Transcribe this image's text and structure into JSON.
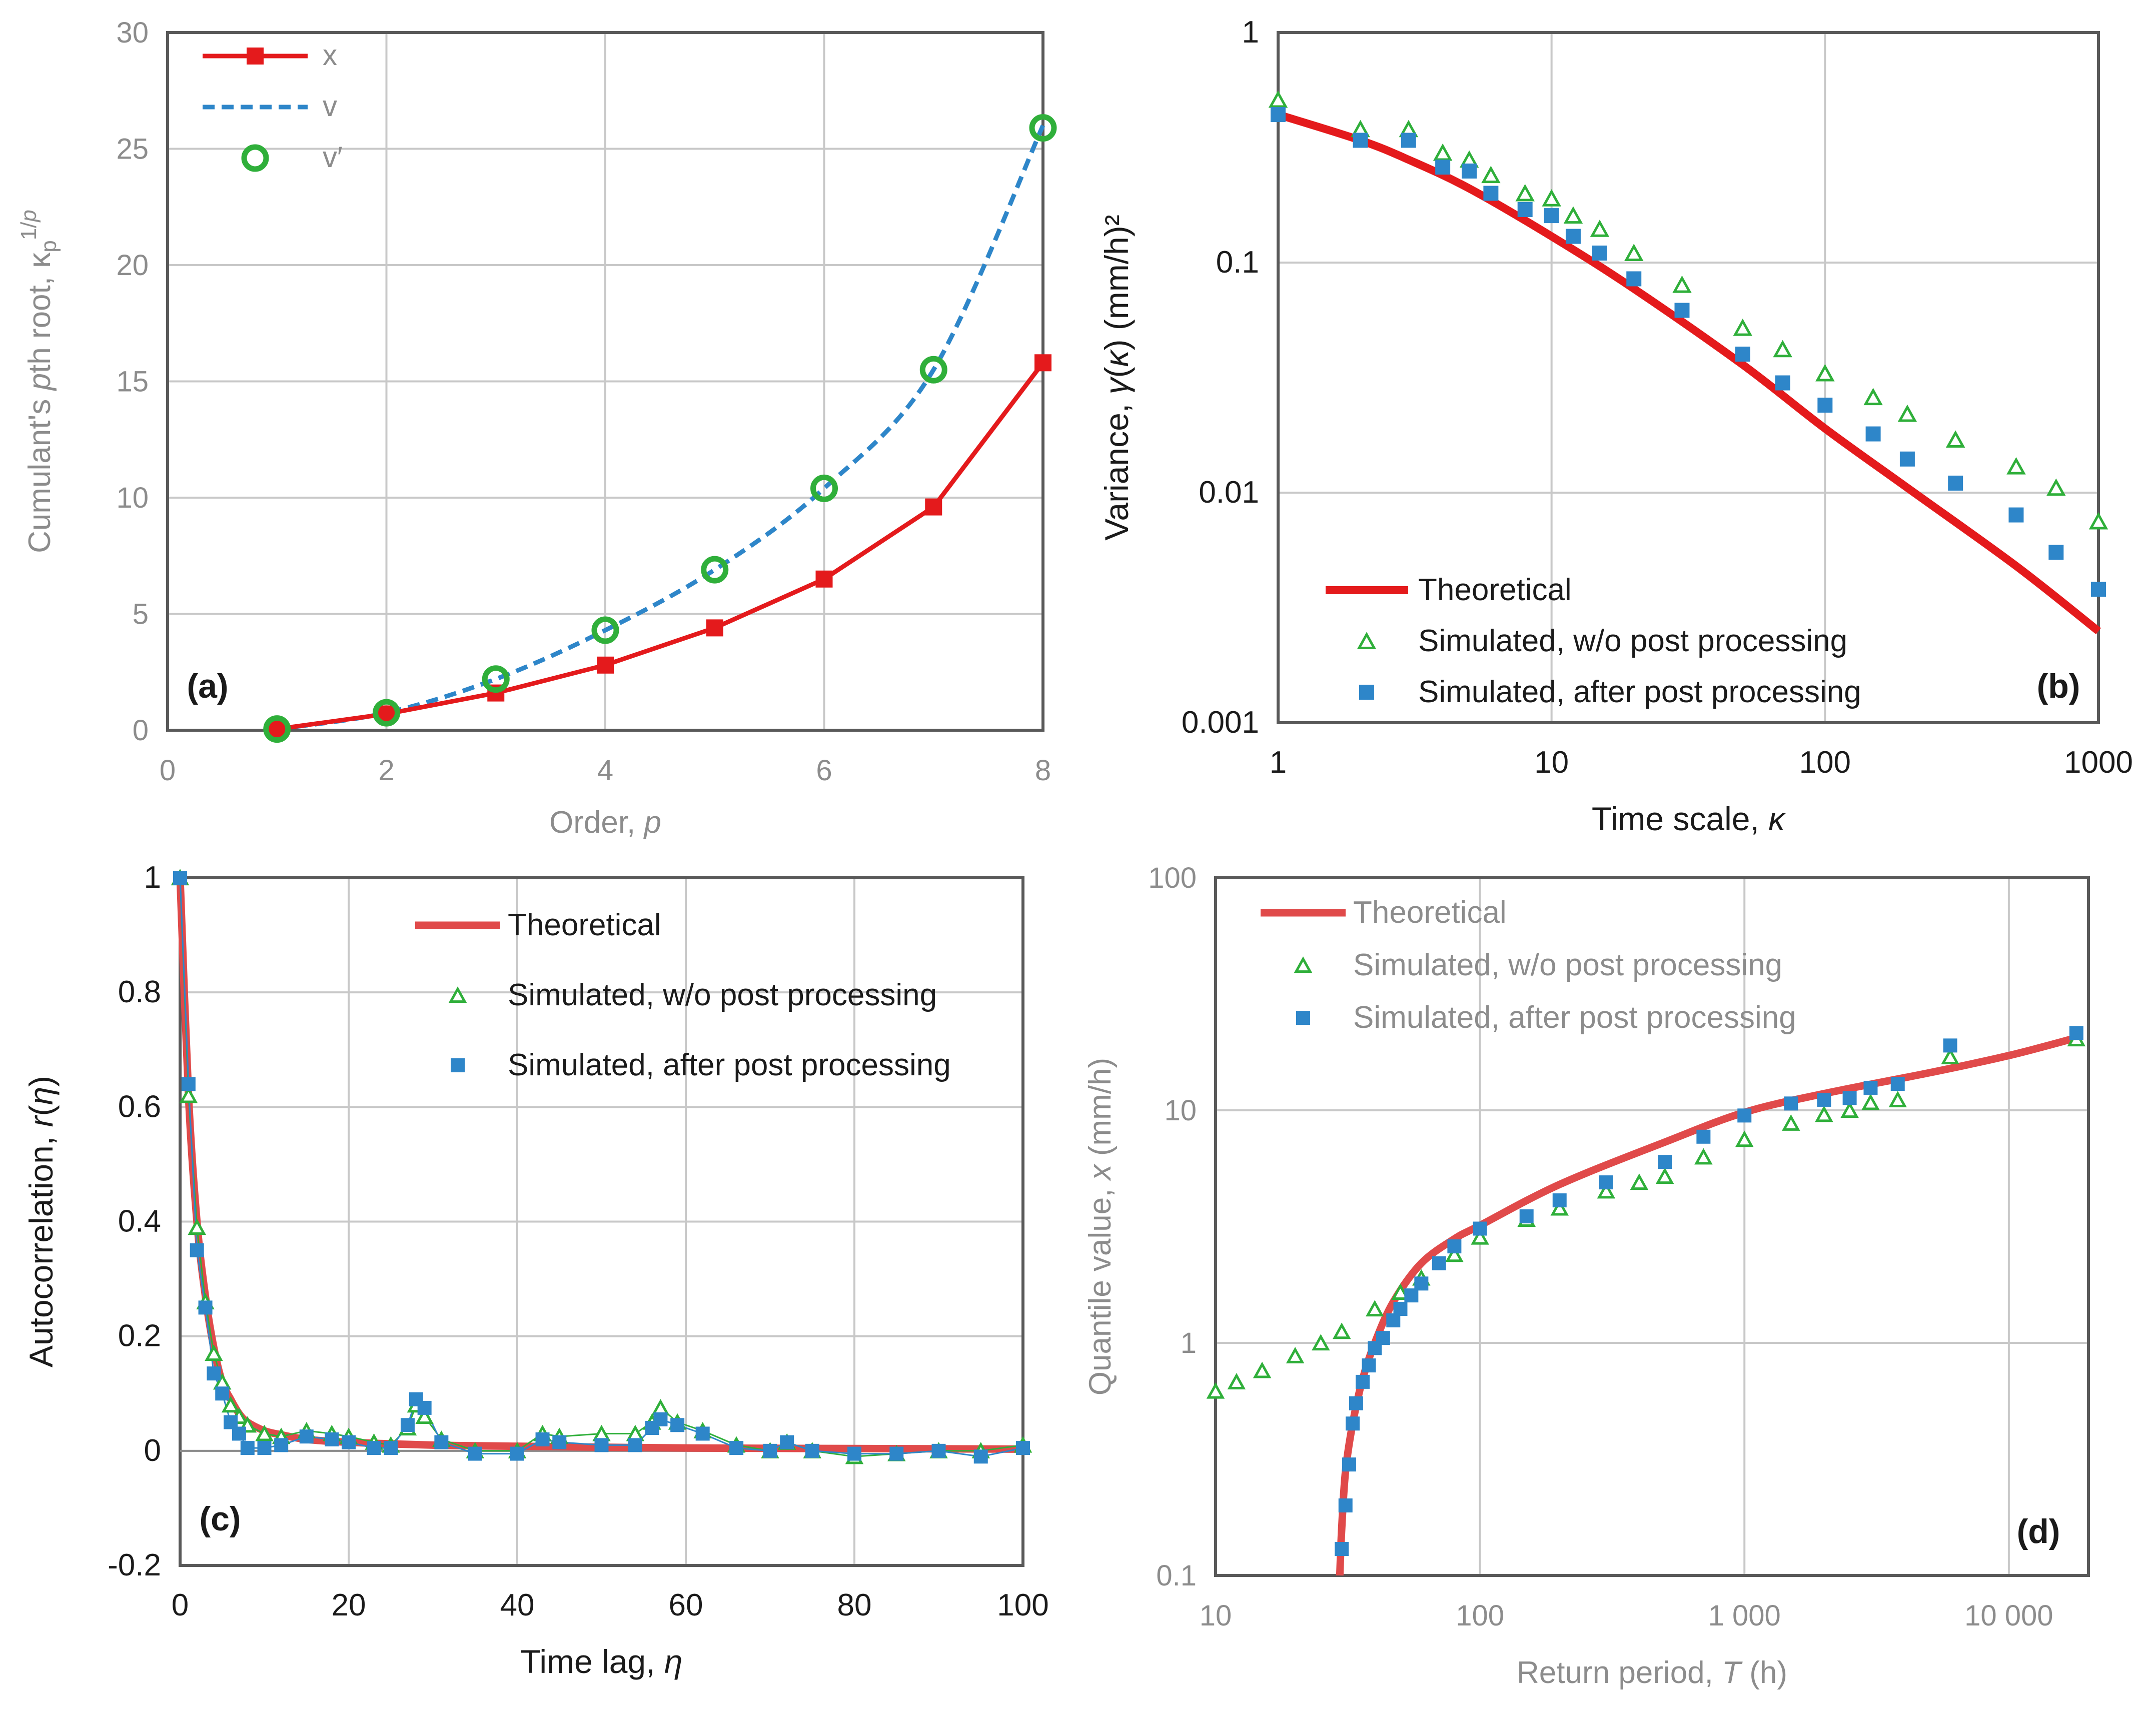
{
  "colors": {
    "red": "#E41A1C",
    "red_theory": "#E04A4A",
    "blue": "#2E86C9",
    "green": "#2FAF3A",
    "grid": "#C8C8C8",
    "frame": "#595959",
    "grey_text": "#8C8C8C",
    "dark_text": "#1A1A1A"
  },
  "chart_data": [
    {
      "id": "a",
      "type": "line",
      "panel_label": "(a)",
      "xlabel": "Order, p",
      "ylabel": "Cumulant's pth root, κp^(1/p)",
      "xlim": [
        0,
        8
      ],
      "ylim": [
        0,
        30
      ],
      "xticks": [
        0,
        2,
        4,
        6,
        8
      ],
      "yticks": [
        0,
        5,
        10,
        15,
        20,
        25,
        30
      ],
      "legend_position": "top-left",
      "series": [
        {
          "name": "x",
          "style": "line-square",
          "color": "red",
          "x": [
            1,
            2,
            3,
            4,
            5,
            6,
            7,
            8
          ],
          "y": [
            0.05,
            0.7,
            1.6,
            2.8,
            4.4,
            6.5,
            9.6,
            15.8
          ]
        },
        {
          "name": "v",
          "style": "dashed",
          "color": "blue",
          "x": [
            1,
            2,
            3,
            4,
            5,
            6,
            7,
            8
          ],
          "y": [
            0.05,
            0.75,
            2.2,
            4.3,
            6.9,
            10.4,
            15.5,
            26.0
          ]
        },
        {
          "name": "v′",
          "style": "circle",
          "color": "green",
          "x": [
            1,
            2,
            3,
            4,
            5,
            6,
            7,
            8
          ],
          "y": [
            0.05,
            0.75,
            2.2,
            4.3,
            6.9,
            10.4,
            15.5,
            25.9
          ]
        }
      ]
    },
    {
      "id": "b",
      "type": "scatter",
      "panel_label": "(b)",
      "xlabel": "Time scale, κ",
      "ylabel": "Variance, γ(κ) (mm/h)²",
      "xscale": "log",
      "yscale": "log",
      "xlim": [
        1,
        1000
      ],
      "ylim": [
        0.001,
        1
      ],
      "xticks": [
        1,
        10,
        100,
        1000
      ],
      "xtick_labels": [
        "1",
        "10",
        "100",
        "1000"
      ],
      "yticks": [
        0.001,
        0.01,
        0.1,
        1
      ],
      "ytick_labels": [
        "0.001",
        "0.01",
        "0.1",
        "1"
      ],
      "legend_position": "bottom-left",
      "theoretical": {
        "name": "Theoretical",
        "x": [
          1,
          2,
          3,
          5,
          10,
          20,
          50,
          100,
          200,
          500,
          1000
        ],
        "y": [
          0.44,
          0.34,
          0.28,
          0.21,
          0.13,
          0.077,
          0.036,
          0.019,
          0.0105,
          0.0048,
          0.0025
        ]
      },
      "simulated_raw": {
        "name": "Simulated, w/o post processing",
        "x": [
          1,
          2,
          3,
          4,
          5,
          6,
          8,
          10,
          12,
          15,
          20,
          30,
          50,
          70,
          100,
          150,
          200,
          300,
          500,
          700,
          1000
        ],
        "y": [
          0.51,
          0.38,
          0.38,
          0.3,
          0.28,
          0.24,
          0.2,
          0.19,
          0.16,
          0.14,
          0.11,
          0.08,
          0.052,
          0.042,
          0.033,
          0.026,
          0.022,
          0.017,
          0.013,
          0.0105,
          0.0075
        ]
      },
      "simulated_post": {
        "name": "Simulated, after post processing",
        "x": [
          1,
          2,
          3,
          4,
          5,
          6,
          8,
          10,
          12,
          15,
          20,
          30,
          50,
          70,
          100,
          150,
          200,
          300,
          500,
          700,
          1000
        ],
        "y": [
          0.44,
          0.34,
          0.34,
          0.26,
          0.25,
          0.2,
          0.17,
          0.16,
          0.13,
          0.11,
          0.085,
          0.062,
          0.04,
          0.03,
          0.024,
          0.018,
          0.014,
          0.011,
          0.008,
          0.0055,
          0.0038
        ]
      }
    },
    {
      "id": "c",
      "type": "scatter",
      "panel_label": "(c)",
      "xlabel": "Time lag, η",
      "ylabel": "Autocorrelation, r(η)",
      "xlim": [
        0,
        100
      ],
      "ylim": [
        -0.2,
        1
      ],
      "xticks": [
        0,
        20,
        40,
        60,
        80,
        100
      ],
      "yticks": [
        -0.2,
        0,
        0.2,
        0.4,
        0.6,
        0.8,
        1
      ],
      "ytick_labels": [
        "-0.2",
        "0",
        "0.2",
        "0.4",
        "0.6",
        "0.8",
        "1"
      ],
      "legend_position": "top-right",
      "theoretical": {
        "name": "Theoretical",
        "x": [
          0,
          1,
          2,
          3,
          4,
          5,
          6,
          7,
          8,
          10,
          12,
          15,
          20,
          30,
          40,
          60,
          80,
          100
        ],
        "y": [
          1,
          0.62,
          0.4,
          0.27,
          0.18,
          0.12,
          0.09,
          0.065,
          0.05,
          0.035,
          0.028,
          0.02,
          0.015,
          0.01,
          0.008,
          0.005,
          0.004,
          0.003
        ]
      },
      "simulated_raw": {
        "name": "Simulated, w/o post processing",
        "x": [
          0,
          1,
          2,
          3,
          4,
          5,
          6,
          7,
          8,
          10,
          12,
          15,
          18,
          20,
          23,
          25,
          27,
          28,
          29,
          31,
          35,
          40,
          43,
          45,
          50,
          54,
          56,
          57,
          59,
          62,
          66,
          70,
          72,
          75,
          80,
          85,
          90,
          95,
          100
        ],
        "y": [
          1,
          0.62,
          0.39,
          0.26,
          0.17,
          0.12,
          0.08,
          0.06,
          0.045,
          0.03,
          0.025,
          0.035,
          0.03,
          0.025,
          0.015,
          0.01,
          0.04,
          0.08,
          0.06,
          0.02,
          0.0,
          0.0,
          0.03,
          0.025,
          0.03,
          0.03,
          0.05,
          0.075,
          0.05,
          0.035,
          0.01,
          0.0,
          0.015,
          0.0,
          -0.01,
          -0.005,
          0.0,
          0.0,
          0.01
        ]
      },
      "simulated_post": {
        "name": "Simulated, after post processing",
        "x": [
          0,
          1,
          2,
          3,
          4,
          5,
          6,
          7,
          8,
          10,
          12,
          15,
          18,
          20,
          23,
          25,
          27,
          28,
          29,
          31,
          35,
          40,
          43,
          45,
          50,
          54,
          56,
          57,
          59,
          62,
          66,
          70,
          72,
          75,
          80,
          85,
          90,
          95,
          100
        ],
        "y": [
          1,
          0.64,
          0.35,
          0.25,
          0.135,
          0.1,
          0.05,
          0.03,
          0.005,
          0.005,
          0.01,
          0.025,
          0.02,
          0.015,
          0.005,
          0.005,
          0.045,
          0.09,
          0.075,
          0.015,
          -0.005,
          -0.005,
          0.02,
          0.015,
          0.01,
          0.01,
          0.04,
          0.055,
          0.045,
          0.03,
          0.005,
          0.0,
          0.015,
          0.0,
          -0.005,
          -0.005,
          0.0,
          -0.01,
          0.005
        ]
      }
    },
    {
      "id": "d",
      "type": "scatter",
      "panel_label": "(d)",
      "xlabel": "Return period, T (h)",
      "ylabel": "Quantile value, x (mm/h)",
      "xscale": "log",
      "yscale": "log",
      "xlim": [
        10,
        20000
      ],
      "ylim": [
        0.1,
        100
      ],
      "xticks": [
        10,
        100,
        1000,
        10000
      ],
      "xtick_labels": [
        "10",
        "100",
        "1 000",
        "10 000"
      ],
      "yticks": [
        0.1,
        1,
        10,
        100
      ],
      "ytick_labels": [
        "0.1",
        "1",
        "10",
        "100"
      ],
      "legend_position": "top-left",
      "theoretical": {
        "name": "Theoretical",
        "x": [
          29.5,
          30,
          31,
          33,
          36,
          40,
          47,
          60,
          80,
          100,
          200,
          500,
          1000,
          2000,
          5000,
          10000,
          18000
        ],
        "y": [
          0.1,
          0.16,
          0.28,
          0.45,
          0.7,
          1.0,
          1.5,
          2.2,
          2.8,
          3.2,
          4.8,
          7.3,
          9.8,
          11.8,
          14.5,
          17.2,
          20.5
        ]
      },
      "simulated_raw": {
        "name": "Simulated, w/o post processing",
        "x": [
          10,
          12,
          15,
          20,
          25,
          30,
          40,
          50,
          60,
          80,
          100,
          150,
          200,
          300,
          400,
          500,
          700,
          1000,
          1500,
          2000,
          2500,
          3000,
          3800,
          6000,
          18000
        ],
        "y": [
          0.62,
          0.68,
          0.76,
          0.88,
          1.0,
          1.12,
          1.4,
          1.65,
          1.9,
          2.4,
          2.85,
          3.4,
          3.8,
          4.5,
          4.9,
          5.2,
          6.3,
          7.5,
          8.8,
          9.6,
          10.0,
          10.8,
          11.1,
          17,
          20.3
        ]
      },
      "simulated_post": {
        "name": "Simulated, after post processing",
        "x": [
          30,
          31,
          32,
          33,
          34,
          36,
          38,
          40,
          43,
          47,
          50,
          55,
          60,
          70,
          80,
          100,
          150,
          200,
          300,
          500,
          700,
          1000,
          1500,
          2000,
          2500,
          3000,
          3800,
          6000,
          18000
        ],
        "y": [
          0.13,
          0.2,
          0.3,
          0.45,
          0.55,
          0.68,
          0.8,
          0.95,
          1.05,
          1.25,
          1.4,
          1.6,
          1.8,
          2.2,
          2.6,
          3.1,
          3.5,
          4.1,
          4.9,
          6.0,
          7.7,
          9.5,
          10.7,
          11.1,
          11.3,
          12.5,
          13.0,
          19.0,
          21.5
        ]
      }
    }
  ],
  "legend_a": {
    "x": "x",
    "v": "v",
    "v_prime": "v′"
  },
  "legend_b": {
    "theoretical": "Theoretical",
    "raw": "Simulated, w/o post processing",
    "post": "Simulated, after post processing"
  },
  "legend_c": {
    "theoretical": "Theoretical",
    "raw": "Simulated, w/o post processing",
    "post": "Simulated, after post processing"
  },
  "legend_d": {
    "theoretical": "Theoretical",
    "raw": "Simulated, w/o post processing",
    "post": "Simulated, after post processing"
  }
}
